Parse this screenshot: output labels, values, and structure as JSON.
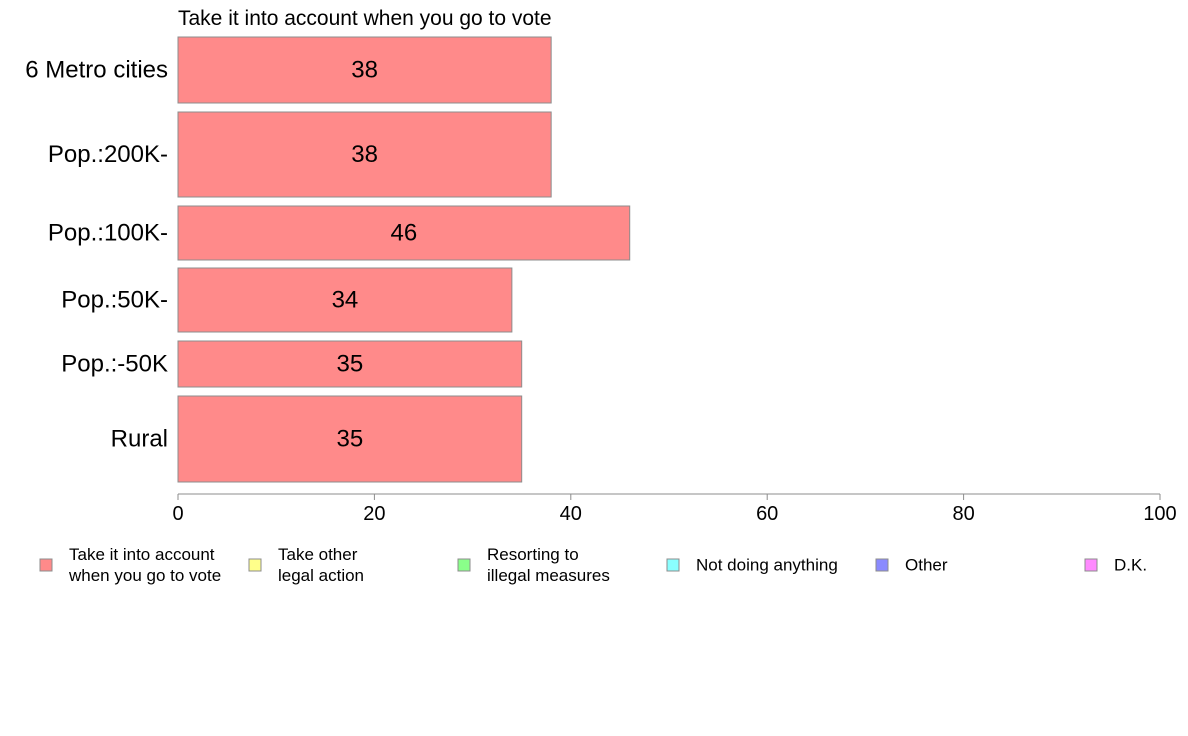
{
  "chart_data": {
    "type": "bar",
    "orientation": "horizontal",
    "stacked": true,
    "title": "Take it into account when you go to vote",
    "categories": [
      "6 Metro cities",
      "Pop.:200K-",
      "Pop.:100K-",
      "Pop.:50K-",
      "Pop.:-50K",
      "Rural"
    ],
    "series": [
      {
        "name": "Take it into account when you go to vote",
        "values": [
          38,
          38,
          46,
          34,
          35,
          35
        ],
        "color": "#ff8a8a"
      }
    ],
    "xlim": [
      0,
      100
    ],
    "xticks": [
      "0",
      "20",
      "40",
      "60",
      "80",
      "100"
    ],
    "grid": false,
    "legend_position": "bottom",
    "legend": [
      {
        "lines": [
          "Take it into account",
          "when you go to vote"
        ],
        "color": "#ff8a8a"
      },
      {
        "lines": [
          "Take other",
          "legal action"
        ],
        "color": "#ffff8a"
      },
      {
        "lines": [
          "Resorting to",
          "illegal measures"
        ],
        "color": "#8aff8a"
      },
      {
        "lines": [
          "Not doing anything"
        ],
        "color": "#8affff"
      },
      {
        "lines": [
          "Other"
        ],
        "color": "#8a8aff"
      },
      {
        "lines": [
          "D.K."
        ],
        "color": "#ff8aff"
      }
    ]
  }
}
